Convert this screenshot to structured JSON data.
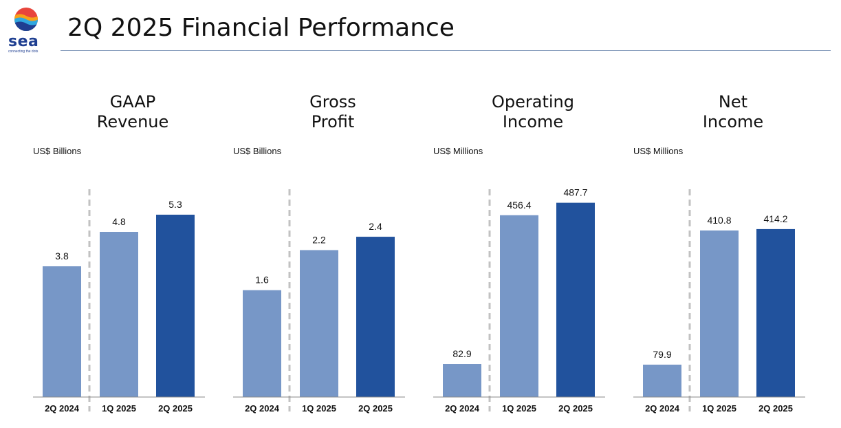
{
  "brand": {
    "name": "sea",
    "tagline": "connecting the dots"
  },
  "title": "2Q 2025 Financial Performance",
  "colors": {
    "prior": "#7797c7",
    "current": "#21529d",
    "rule": "#7f96b8",
    "divider": "#c2c2c2"
  },
  "chart_data": [
    {
      "type": "bar",
      "title": "GAAP\nRevenue",
      "unit": "US$ Billions",
      "categories": [
        "2Q 2024",
        "1Q 2025",
        "2Q 2025"
      ],
      "values": [
        3.8,
        4.8,
        5.3
      ],
      "labels": [
        "3.8",
        "4.8",
        "5.3"
      ],
      "ylim": [
        0,
        6.6
      ]
    },
    {
      "type": "bar",
      "title": "Gross\nProfit",
      "unit": "US$ Billions",
      "categories": [
        "2Q 2024",
        "1Q 2025",
        "2Q 2025"
      ],
      "values": [
        1.6,
        2.2,
        2.4
      ],
      "labels": [
        "1.6",
        "2.2",
        "2.4"
      ],
      "ylim": [
        0,
        3.4
      ]
    },
    {
      "type": "bar",
      "title": "Operating\nIncome",
      "unit": "US$ Millions",
      "categories": [
        "2Q 2024",
        "1Q 2025",
        "2Q 2025"
      ],
      "values": [
        82.9,
        456.4,
        487.7
      ],
      "labels": [
        "82.9",
        "456.4",
        "487.7"
      ],
      "ylim": [
        0,
        570
      ]
    },
    {
      "type": "bar",
      "title": "Net\nIncome",
      "unit": "US$ Millions",
      "categories": [
        "2Q 2024",
        "1Q 2025",
        "2Q 2025"
      ],
      "values": [
        79.9,
        410.8,
        414.2
      ],
      "labels": [
        "79.9",
        "410.8",
        "414.2"
      ],
      "ylim": [
        0,
        560
      ]
    }
  ]
}
